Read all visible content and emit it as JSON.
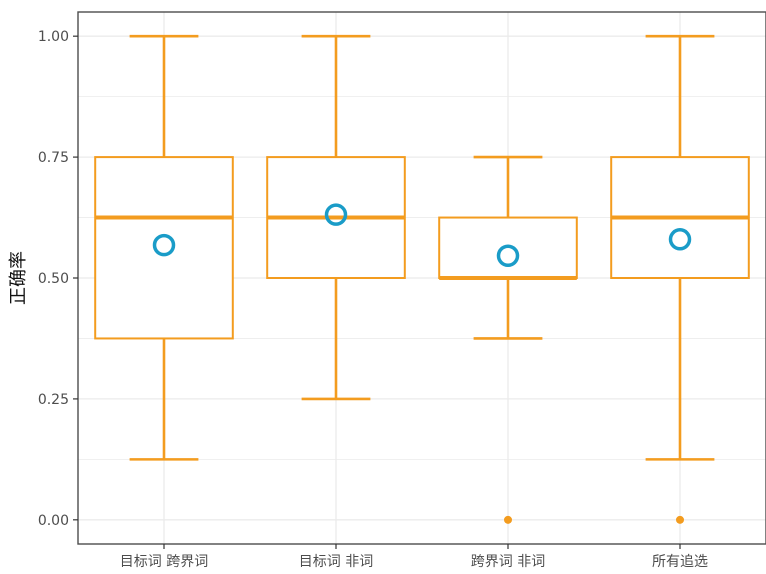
{
  "chart_data": {
    "type": "boxplot",
    "title": "",
    "xlabel": "",
    "ylabel": "正确率",
    "ylim": [
      0,
      1
    ],
    "yticks": [
      "0.00",
      "0.25",
      "0.50",
      "0.75",
      "1.00"
    ],
    "grid": true,
    "legend": "none",
    "colors": {
      "box": "#f39c1f",
      "mean": "#1a9cc8",
      "grid": "#ebebeb",
      "panel_border": "#4d4d4d"
    },
    "categories": [
      "目标词 跨界词",
      "目标词 非词",
      "跨界词 非词",
      "所有追选"
    ],
    "boxes": [
      {
        "whisker_low": 0.125,
        "q1": 0.375,
        "median": 0.625,
        "q3": 0.75,
        "whisker_high": 1.0,
        "mean": 0.568,
        "outliers": []
      },
      {
        "whisker_low": 0.25,
        "q1": 0.5,
        "median": 0.625,
        "q3": 0.75,
        "whisker_high": 1.0,
        "mean": 0.631,
        "outliers": []
      },
      {
        "whisker_low": 0.375,
        "q1": 0.5,
        "median": 0.5,
        "q3": 0.625,
        "whisker_high": 0.75,
        "mean": 0.546,
        "outliers": [
          0.0
        ]
      },
      {
        "whisker_low": 0.125,
        "q1": 0.5,
        "median": 0.625,
        "q3": 0.75,
        "whisker_high": 1.0,
        "mean": 0.58,
        "outliers": [
          0.0
        ]
      }
    ]
  }
}
